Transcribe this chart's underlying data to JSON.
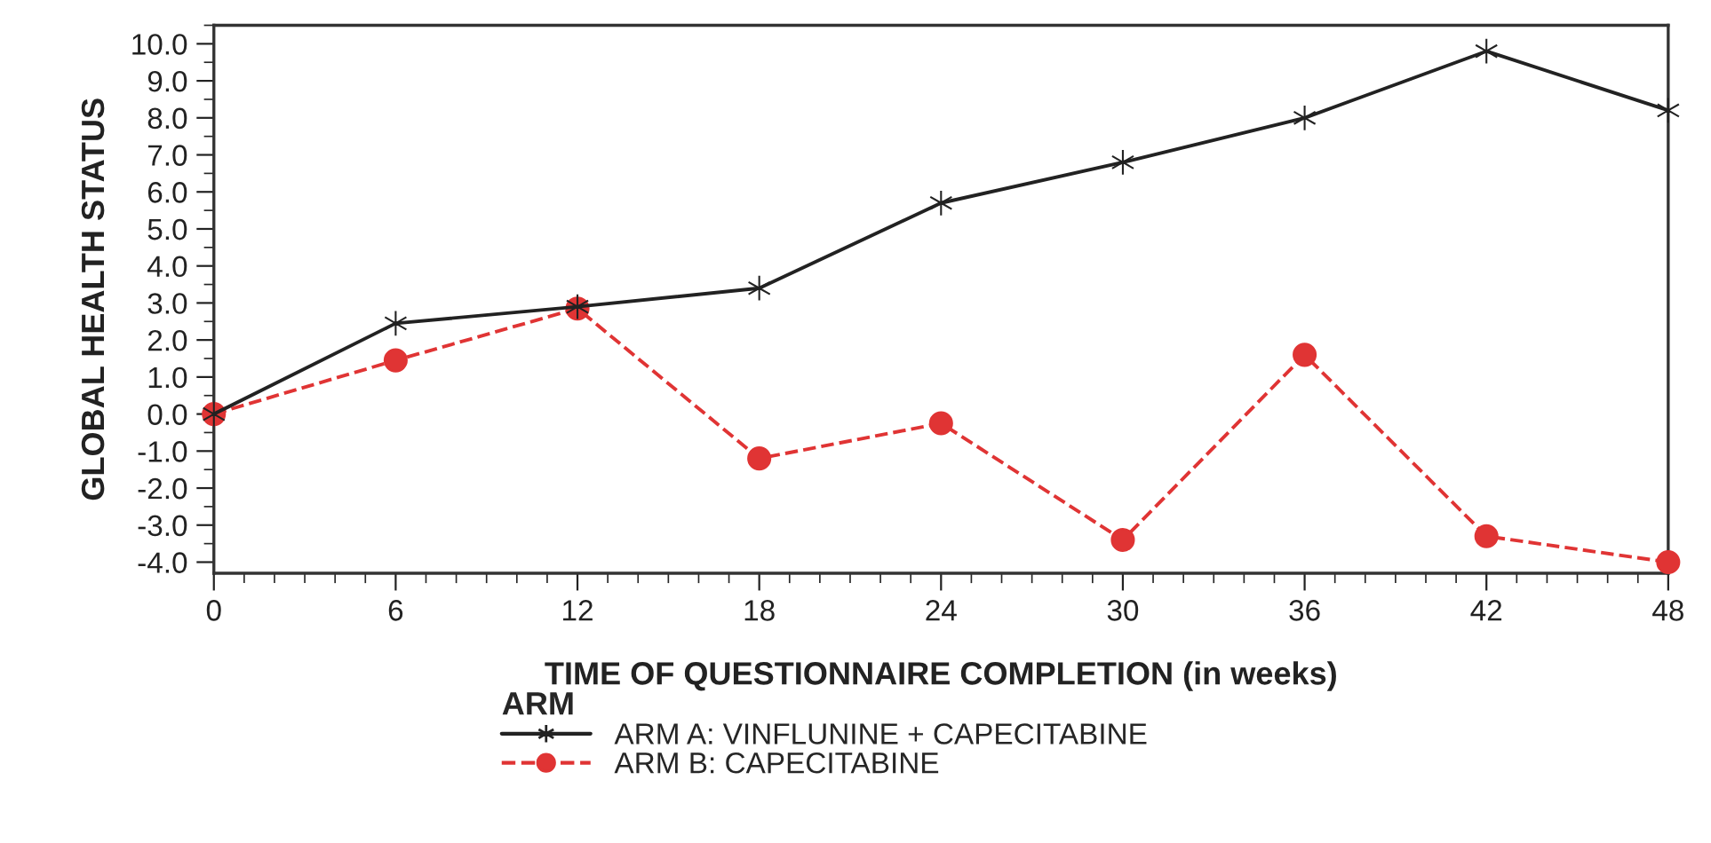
{
  "chart_data": {
    "type": "line",
    "xlabel": "TIME OF QUESTIONNAIRE COMPLETION (in weeks)",
    "ylabel": "GLOBAL HEALTH STATUS",
    "x": [
      0,
      6,
      12,
      18,
      24,
      30,
      36,
      42,
      48
    ],
    "series": [
      {
        "name": "ARM A: VINFLUNINE + CAPECITABINE",
        "color": "#222222",
        "values": [
          0.0,
          2.45,
          2.9,
          3.4,
          5.7,
          6.8,
          8.0,
          9.8,
          8.2
        ],
        "marker": "cross",
        "line_style": "solid"
      },
      {
        "name": "ARM B: CAPECITABINE",
        "color": "#e03434",
        "values": [
          0.0,
          1.45,
          2.85,
          -1.2,
          -0.25,
          -3.4,
          1.6,
          -3.3,
          -4.0
        ],
        "marker": "circle",
        "line_style": "dashed"
      }
    ],
    "legend_title": "ARM",
    "legend": "bottom",
    "xlim": [
      0,
      48
    ],
    "xticks": [
      0,
      6,
      12,
      18,
      24,
      30,
      36,
      42,
      48
    ],
    "ylim": [
      -4.3,
      10.5
    ],
    "yticks": [
      {
        "value": -4,
        "label": "-4.0"
      },
      {
        "value": -3,
        "label": "-3.0"
      },
      {
        "value": -2,
        "label": "-2.0"
      },
      {
        "value": -1,
        "label": "-1.0"
      },
      {
        "value": 0,
        "label": "0.0"
      },
      {
        "value": 1,
        "label": "1.0"
      },
      {
        "value": 2,
        "label": "2.0"
      },
      {
        "value": 3,
        "label": "3.0"
      },
      {
        "value": 4,
        "label": "4.0"
      },
      {
        "value": 5,
        "label": "5.0"
      },
      {
        "value": 6,
        "label": "6.0"
      },
      {
        "value": 7,
        "label": "7.0"
      },
      {
        "value": 8,
        "label": "8.0"
      },
      {
        "value": 9,
        "label": "9.0"
      },
      {
        "value": 10,
        "label": "10.0"
      }
    ],
    "grid": false
  }
}
